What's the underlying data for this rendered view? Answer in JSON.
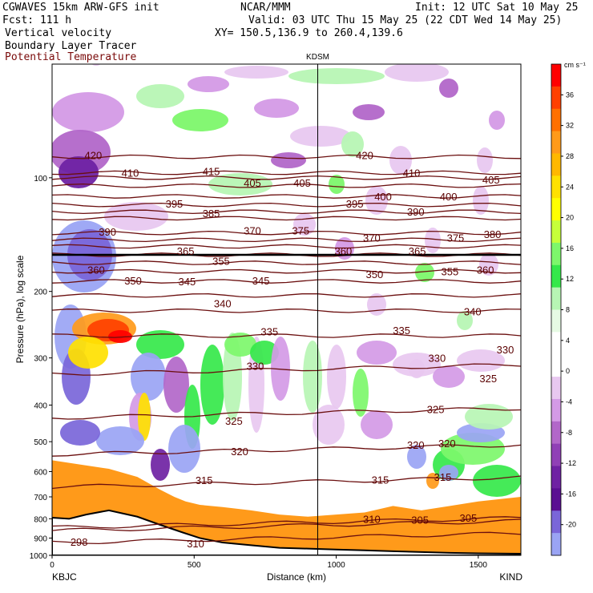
{
  "header": {
    "line1_left": "CGWAVES 15km ARW-GFS init",
    "line1_center": "NCAR/MMM",
    "line1_right": "Init: 12 UTC Sat 10 May 25",
    "line2_left": "Fcst: 111 h",
    "line2_right": "Valid: 03 UTC Thu 15 May 25 (22 CDT Wed 14 May 25)",
    "line3_left": "Vertical velocity",
    "line3_right": "XY= 150.5,136.9 to 260.4,139.6",
    "line4_left": "Boundary Layer Tracer",
    "line5_left": "Potential Temperature"
  },
  "chart_data": {
    "type": "heatmap",
    "xlabel": "Distance (km)",
    "ylabel": "Pressure (hPa), log scale",
    "xlim": [
      0,
      1650
    ],
    "ylim": [
      1000,
      50
    ],
    "x_ticks": [
      0,
      500,
      1000,
      1500
    ],
    "y_ticks": [
      100,
      200,
      300,
      400,
      500,
      600,
      700,
      800,
      900,
      1000
    ],
    "start_label": "KBJC",
    "end_label": "KIND",
    "marker": {
      "label": "KDSM",
      "x": 935
    },
    "colorbar": {
      "unit": "cm s⁻¹",
      "ticks": [
        36,
        32,
        28,
        24,
        20,
        16,
        12,
        8,
        4,
        0,
        -4,
        -8,
        -12,
        -16,
        -20
      ],
      "colors": [
        "#ff0000",
        "#ff4000",
        "#ff7000",
        "#ff9a1a",
        "#ffb800",
        "#ffe100",
        "#ffff00",
        "#c6ff3a",
        "#7df76b",
        "#35e84a",
        "#b7f5b4",
        "#e6fae4",
        "#ffffff",
        "#ffffff",
        "#e8c8f0",
        "#d49ae6",
        "#b267c9",
        "#9040b6",
        "#6f22a3",
        "#5a0f92",
        "#7a66d9",
        "#9aa4f4"
      ]
    },
    "theta_contours": [
      {
        "label": "420",
        "p": 88
      },
      {
        "label": "415",
        "p": 97
      },
      {
        "label": "410",
        "p": 100
      },
      {
        "label": "405",
        "p": 105
      },
      {
        "label": "400",
        "p": 112
      },
      {
        "label": "395",
        "p": 118
      },
      {
        "label": "390",
        "p": 123
      },
      {
        "label": "385",
        "p": 128
      },
      {
        "label": "380",
        "p": 140
      },
      {
        "label": "375",
        "p": 146
      },
      {
        "label": "370",
        "p": 152
      },
      {
        "label": "365",
        "p": 160
      },
      {
        "label": "360",
        "p": 168
      },
      {
        "label": "355",
        "p": 177
      },
      {
        "label": "350",
        "p": 188
      },
      {
        "label": "345",
        "p": 205
      },
      {
        "label": "340",
        "p": 225
      },
      {
        "label": "335",
        "p": 262
      },
      {
        "label": "330",
        "p": 322
      },
      {
        "label": "325",
        "p": 420
      },
      {
        "label": "320",
        "p": 525
      },
      {
        "label": "315",
        "p": 640
      },
      {
        "label": "310",
        "p": 835
      },
      {
        "label": "305",
        "p": 820
      },
      {
        "label": "298",
        "p": 900
      }
    ],
    "contour_label_positions": [
      {
        "label": "420",
        "x": 145,
        "p": 87
      },
      {
        "label": "410",
        "x": 275,
        "p": 97
      },
      {
        "label": "415",
        "x": 560,
        "p": 96
      },
      {
        "label": "405",
        "x": 705,
        "p": 103
      },
      {
        "label": "405",
        "x": 880,
        "p": 103
      },
      {
        "label": "420",
        "x": 1100,
        "p": 87
      },
      {
        "label": "410",
        "x": 1265,
        "p": 97
      },
      {
        "label": "405",
        "x": 1545,
        "p": 101
      },
      {
        "label": "395",
        "x": 430,
        "p": 117
      },
      {
        "label": "385",
        "x": 560,
        "p": 124
      },
      {
        "label": "400",
        "x": 1165,
        "p": 112
      },
      {
        "label": "395",
        "x": 1065,
        "p": 117
      },
      {
        "label": "390",
        "x": 1280,
        "p": 123
      },
      {
        "label": "400",
        "x": 1395,
        "p": 112
      },
      {
        "label": "390",
        "x": 195,
        "p": 139
      },
      {
        "label": "370",
        "x": 705,
        "p": 138
      },
      {
        "label": "375",
        "x": 875,
        "p": 138
      },
      {
        "label": "370",
        "x": 1125,
        "p": 144
      },
      {
        "label": "375",
        "x": 1420,
        "p": 144
      },
      {
        "label": "380",
        "x": 1550,
        "p": 141
      },
      {
        "label": "365",
        "x": 470,
        "p": 156
      },
      {
        "label": "360",
        "x": 1025,
        "p": 156
      },
      {
        "label": "365",
        "x": 1285,
        "p": 156
      },
      {
        "label": "360",
        "x": 155,
        "p": 175
      },
      {
        "label": "355",
        "x": 595,
        "p": 166
      },
      {
        "label": "350",
        "x": 1135,
        "p": 180
      },
      {
        "label": "355",
        "x": 1400,
        "p": 177
      },
      {
        "label": "360",
        "x": 1525,
        "p": 175
      },
      {
        "label": "350",
        "x": 285,
        "p": 187
      },
      {
        "label": "345",
        "x": 475,
        "p": 188
      },
      {
        "label": "345",
        "x": 735,
        "p": 187
      },
      {
        "label": "340",
        "x": 600,
        "p": 215
      },
      {
        "label": "340",
        "x": 1480,
        "p": 226
      },
      {
        "label": "335",
        "x": 765,
        "p": 255
      },
      {
        "label": "335",
        "x": 1230,
        "p": 253
      },
      {
        "label": "330",
        "x": 715,
        "p": 315
      },
      {
        "label": "330",
        "x": 1355,
        "p": 300
      },
      {
        "label": "330",
        "x": 1595,
        "p": 285
      },
      {
        "label": "325",
        "x": 1535,
        "p": 340
      },
      {
        "label": "325",
        "x": 640,
        "p": 440
      },
      {
        "label": "325",
        "x": 1350,
        "p": 410
      },
      {
        "label": "320",
        "x": 660,
        "p": 530
      },
      {
        "label": "320",
        "x": 1280,
        "p": 510
      },
      {
        "label": "320",
        "x": 1390,
        "p": 505
      },
      {
        "label": "315",
        "x": 535,
        "p": 632
      },
      {
        "label": "315",
        "x": 1155,
        "p": 630
      },
      {
        "label": "315",
        "x": 1375,
        "p": 620
      },
      {
        "label": "310",
        "x": 1125,
        "p": 800
      },
      {
        "label": "305",
        "x": 1295,
        "p": 805
      },
      {
        "label": "305",
        "x": 1465,
        "p": 795
      },
      {
        "label": "310",
        "x": 505,
        "p": 930
      },
      {
        "label": "298",
        "x": 95,
        "p": 920
      }
    ],
    "terrain": [
      [
        0,
        795
      ],
      [
        60,
        800
      ],
      [
        120,
        780
      ],
      [
        200,
        760
      ],
      [
        300,
        790
      ],
      [
        380,
        830
      ],
      [
        460,
        870
      ],
      [
        520,
        900
      ],
      [
        600,
        925
      ],
      [
        700,
        940
      ],
      [
        800,
        955
      ],
      [
        900,
        960
      ],
      [
        1000,
        965
      ],
      [
        1100,
        970
      ],
      [
        1200,
        975
      ],
      [
        1300,
        980
      ],
      [
        1400,
        985
      ],
      [
        1500,
        988
      ],
      [
        1650,
        990
      ]
    ]
  }
}
